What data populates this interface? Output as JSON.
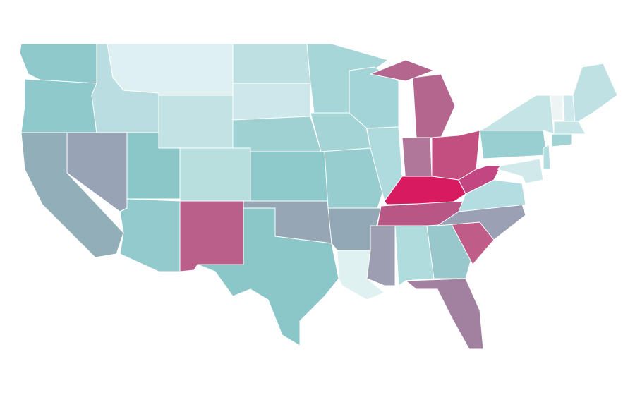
{
  "map": {
    "fills": [
      "#8fc9cc",
      "#8fc9cc",
      "#91aeb9",
      "#98a4b5",
      "#b9dde0",
      "#dff0f2",
      "#c2e2e4",
      "#8bc6c9",
      "#b8dede",
      "#93cacd",
      "#b95f8a",
      "#bfe0e2",
      "#cde7ea",
      "#9fd0d2",
      "#8ec9cb",
      "#97a6b5",
      "#8bc7c9",
      "#a6d6d8",
      "#a5d4d6",
      "#98cdd0",
      "#93a8b6",
      "#e0f1f1",
      "#a3d5d8",
      "#b0dbde",
      "#b5668f",
      "#b5668f",
      "#b0779a",
      "#c34e80",
      "#d81b60",
      "#b85786",
      "#9e9eb2",
      "#afdcdc",
      "#98c8cb",
      "#a180a0",
      "#c05c88",
      "#9aa1b4",
      "#b3dde0",
      "#c24681",
      "#99cfd1",
      "#c5e4e6",
      "#eef3f3",
      "#cde8ea",
      "#bfe1e3",
      "#c7e5e7",
      "#a1d2d4",
      "#b3dcdf",
      "#d1e9eb"
    ]
  }
}
